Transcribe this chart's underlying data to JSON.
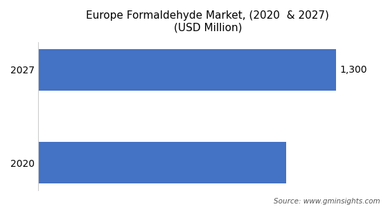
{
  "title_line1": "Europe Formaldehyde Market, (2020  & 2027)",
  "title_line2": "(USD Million)",
  "categories": [
    "2020",
    "2027"
  ],
  "values": [
    1080,
    1300
  ],
  "bar_color": "#4472C4",
  "value_label": "1,300",
  "value_label_index": 1,
  "xlim": [
    0,
    1480
  ],
  "bar_height": 0.45,
  "background_color": "#ffffff",
  "source_text": "Source: www.gminsights.com",
  "title_fontsize": 11,
  "tick_fontsize": 10,
  "label_fontsize": 10
}
